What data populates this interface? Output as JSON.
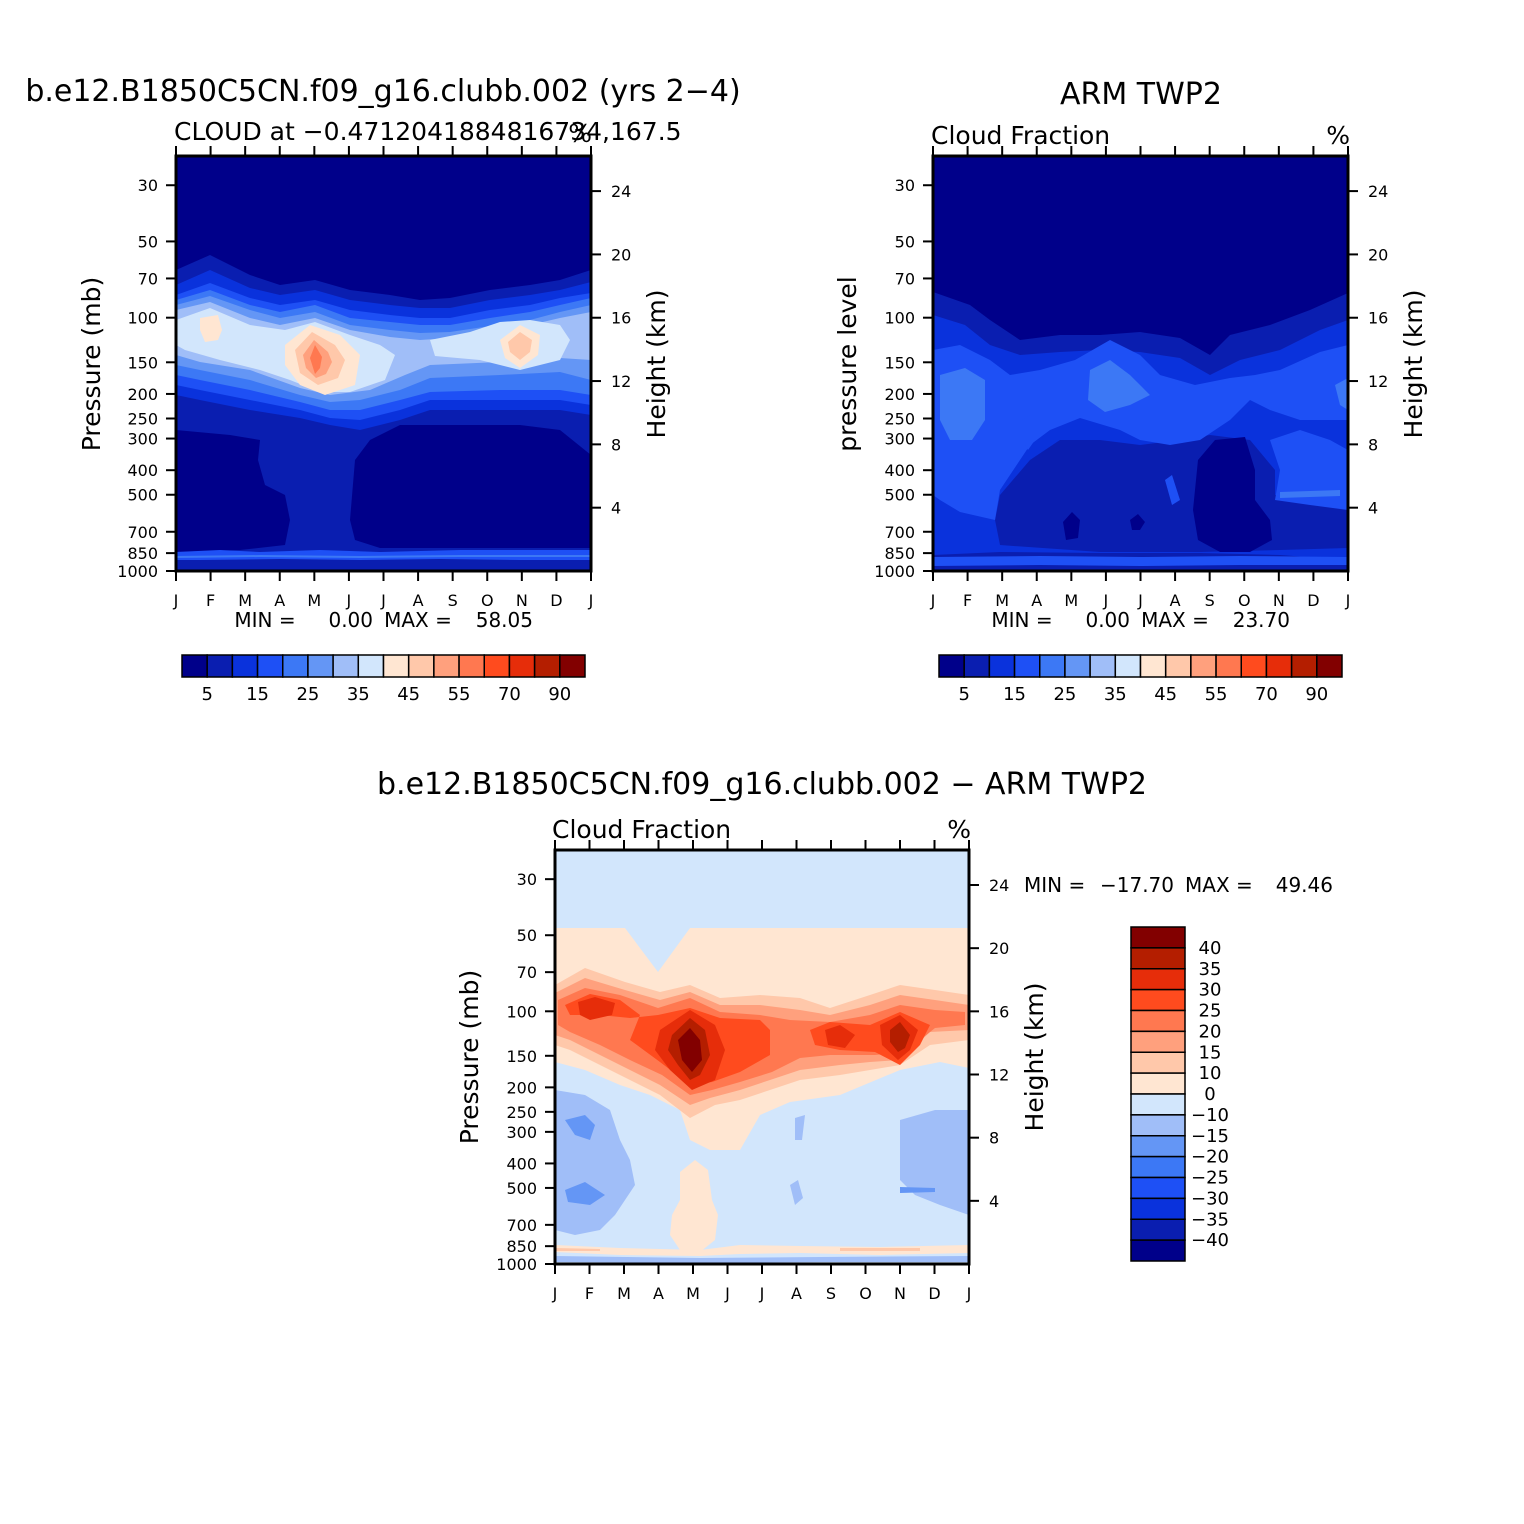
{
  "palette_abs": [
    "#00008a",
    "#0a1eb0",
    "#0a32dc",
    "#1e50f5",
    "#3c78f5",
    "#6496f5",
    "#a0bef8",
    "#d2e6fc",
    "#ffe6d2",
    "#ffc8aa",
    "#ffa07d",
    "#ff7850",
    "#ff4b1e",
    "#e62d0a",
    "#b41e00",
    "#820000"
  ],
  "palette_diff": [
    "#00008a",
    "#0a1eb0",
    "#0a32dc",
    "#1e50f5",
    "#3c78f5",
    "#6496f5",
    "#a0bef8",
    "#d2e6fc",
    "#ffe6d2",
    "#ffc8aa",
    "#ffa07d",
    "#ff7850",
    "#ff4b1e",
    "#e62d0a",
    "#b41e00",
    "#820000"
  ],
  "chart_data": [
    {
      "id": "model",
      "type": "heatmap",
      "title": "b.e12.B1850C5CN.f09_g16.clubb.002 (yrs 2−4)",
      "subtitle_left": "CLOUD at −0.4712041884816734,167.5",
      "subtitle_right": "%",
      "ylabel": "Pressure (mb)",
      "ylabel_right": "Height (km)",
      "x_ticks": [
        "J",
        "F",
        "M",
        "A",
        "M",
        "J",
        "J",
        "A",
        "S",
        "O",
        "N",
        "D",
        "J"
      ],
      "y_ticks": [
        "30",
        "50",
        "70",
        "100",
        "150",
        "200",
        "250",
        "300",
        "400",
        "500",
        "700",
        "850",
        "1000"
      ],
      "y_ticks_right": [
        "24",
        "20",
        "16",
        "12",
        "8",
        "4"
      ],
      "stats": {
        "min_label": "MIN =",
        "min": "0.00",
        "max_label": "MAX =",
        "max": "58.05"
      },
      "colorbar_labels": [
        "5",
        "15",
        "25",
        "35",
        "45",
        "55",
        "70",
        "90"
      ],
      "contour_levels": [
        5,
        10,
        15,
        20,
        25,
        30,
        35,
        40,
        45,
        50,
        55,
        60,
        70,
        80,
        90
      ]
    },
    {
      "id": "obs",
      "type": "heatmap",
      "title": "ARM TWP2",
      "subtitle_left": "Cloud Fraction",
      "subtitle_right": "%",
      "ylabel": "pressure level",
      "ylabel_right": "Height (km)",
      "x_ticks": [
        "J",
        "F",
        "M",
        "A",
        "M",
        "J",
        "J",
        "A",
        "S",
        "O",
        "N",
        "D",
        "J"
      ],
      "y_ticks": [
        "30",
        "50",
        "70",
        "100",
        "150",
        "200",
        "250",
        "300",
        "400",
        "500",
        "700",
        "850",
        "1000"
      ],
      "y_ticks_right": [
        "24",
        "20",
        "16",
        "12",
        "8",
        "4"
      ],
      "stats": {
        "min_label": "MIN =",
        "min": "0.00",
        "max_label": "MAX =",
        "max": "23.70"
      },
      "colorbar_labels": [
        "5",
        "15",
        "25",
        "35",
        "45",
        "55",
        "70",
        "90"
      ],
      "contour_levels": [
        5,
        10,
        15,
        20,
        25,
        30,
        35,
        40,
        45,
        50,
        55,
        60,
        70,
        80,
        90
      ]
    },
    {
      "id": "diff",
      "type": "heatmap",
      "title": "b.e12.B1850C5CN.f09_g16.clubb.002 − ARM TWP2",
      "subtitle_left": "Cloud Fraction",
      "subtitle_right": "%",
      "ylabel": "Pressure (mb)",
      "ylabel_right": "Height (km)",
      "x_ticks": [
        "J",
        "F",
        "M",
        "A",
        "M",
        "J",
        "J",
        "A",
        "S",
        "O",
        "N",
        "D",
        "J"
      ],
      "y_ticks": [
        "30",
        "50",
        "70",
        "100",
        "150",
        "200",
        "250",
        "300",
        "400",
        "500",
        "700",
        "850",
        "1000"
      ],
      "y_ticks_right": [
        "24",
        "20",
        "16",
        "12",
        "8",
        "4"
      ],
      "stats": {
        "min_label": "MIN =",
        "min": "−17.70",
        "max_label": "MAX =",
        "max": "49.46"
      },
      "colorbar_labels": [
        "40",
        "35",
        "30",
        "25",
        "20",
        "15",
        "10",
        "0",
        "−10",
        "−15",
        "−20",
        "−25",
        "−30",
        "−35",
        "−40"
      ],
      "contour_levels": [
        -40,
        -35,
        -30,
        -25,
        -20,
        -15,
        -10,
        0,
        10,
        15,
        20,
        25,
        30,
        35,
        40
      ]
    }
  ]
}
